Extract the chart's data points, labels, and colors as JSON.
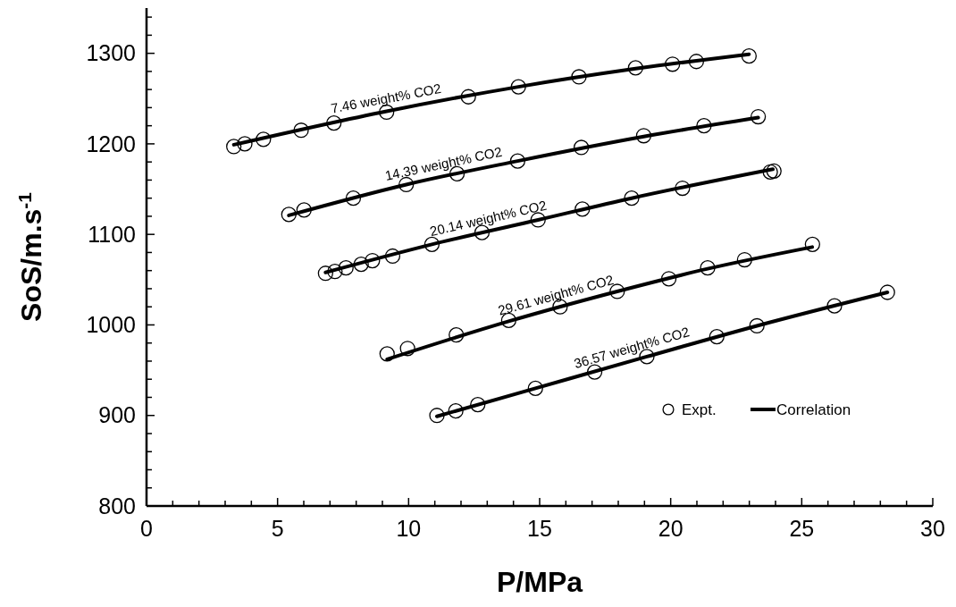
{
  "chart_data": {
    "type": "scatter",
    "xlabel": "P/MPa",
    "ylabel": "SoS/m.s$^{-1}$",
    "xlim": [
      0,
      30
    ],
    "ylim": [
      800,
      1350
    ],
    "xticks": [
      0,
      {
        "value": 1,
        "label": null
      },
      {
        "value": 2,
        "label": null
      },
      {
        "value": 3,
        "label": null
      },
      {
        "value": 4,
        "label": null
      },
      5,
      {
        "value": 6,
        "label": null
      },
      {
        "value": 7,
        "label": null
      },
      {
        "value": 8,
        "label": null
      },
      {
        "value": 9,
        "label": null
      },
      10,
      {
        "value": 11,
        "label": null
      },
      {
        "value": 12,
        "label": null
      },
      {
        "value": 13,
        "label": null
      },
      {
        "value": 14,
        "label": null
      },
      15,
      {
        "value": 16,
        "label": null
      },
      {
        "value": 17,
        "label": null
      },
      {
        "value": 18,
        "label": null
      },
      {
        "value": 19,
        "label": null
      },
      20,
      {
        "value": 21,
        "label": null
      },
      {
        "value": 22,
        "label": null
      },
      {
        "value": 23,
        "label": null
      },
      {
        "value": 24,
        "label": null
      },
      25,
      {
        "value": 26,
        "label": null
      },
      {
        "value": 27,
        "label": null
      },
      {
        "value": 28,
        "label": null
      },
      {
        "value": 29,
        "label": null
      },
      30
    ],
    "yticks": [
      800,
      {
        "value": 820,
        "label": null
      },
      {
        "value": 840,
        "label": null
      },
      {
        "value": 860,
        "label": null
      },
      {
        "value": 880,
        "label": null
      },
      900,
      {
        "value": 920,
        "label": null
      },
      {
        "value": 940,
        "label": null
      },
      {
        "value": 960,
        "label": null
      },
      {
        "value": 980,
        "label": null
      },
      1000,
      {
        "value": 1020,
        "label": null
      },
      {
        "value": 1040,
        "label": null
      },
      {
        "value": 1060,
        "label": null
      },
      {
        "value": 1080,
        "label": null
      },
      1100,
      {
        "value": 1120,
        "label": null
      },
      {
        "value": 1140,
        "label": null
      },
      {
        "value": 1160,
        "label": null
      },
      {
        "value": 1180,
        "label": null
      },
      1200,
      {
        "value": 1220,
        "label": null
      },
      {
        "value": 1240,
        "label": null
      },
      {
        "value": 1260,
        "label": null
      },
      {
        "value": 1280,
        "label": null
      },
      1300,
      {
        "value": 1320,
        "label": null
      },
      {
        "value": 1340,
        "label": null
      }
    ],
    "grid": false,
    "legend": "bottom right",
    "series": [
      {
        "name": "Expt.",
        "marker": "circle",
        "color": "#000000",
        "x": [
          3.33,
          3.75,
          4.46,
          5.9,
          7.15,
          9.16,
          12.28,
          14.19,
          16.5,
          18.66,
          20.07,
          20.98,
          22.99,
          5.43,
          6.01,
          7.89,
          9.91,
          11.85,
          14.16,
          16.59,
          18.97,
          21.27,
          23.34,
          6.83,
          7.19,
          7.61,
          8.19,
          8.62,
          9.39,
          10.89,
          12.8,
          14.94,
          16.63,
          18.51,
          20.45,
          23.8,
          23.94,
          9.18,
          9.96,
          11.82,
          13.82,
          15.78,
          17.96,
          19.93,
          21.41,
          22.82,
          25.41,
          11.08,
          11.8,
          12.64,
          14.84,
          17.1,
          19.09,
          21.76,
          23.29,
          26.25,
          28.27
        ],
        "values": [
          1197,
          1200,
          1205,
          1215,
          1223,
          1235,
          1252,
          1263,
          1274,
          1284,
          1288,
          1291,
          1297,
          1122,
          1127,
          1140,
          1155,
          1167,
          1181,
          1196,
          1209,
          1220,
          1230,
          1057,
          1059,
          1063,
          1067,
          1071,
          1076,
          1089,
          1102,
          1116,
          1128,
          1140,
          1151,
          1169,
          1170,
          968,
          974,
          989,
          1005,
          1020,
          1037,
          1051,
          1063,
          1072,
          1089,
          900,
          905,
          912,
          930,
          948,
          965,
          987,
          999,
          1021,
          1036
        ]
      },
      {
        "name": "Correlation",
        "type": "line",
        "marker": "none",
        "line_style": "solid",
        "color": "#000000",
        "x": [
          3.33,
          9.16,
          14.19,
          18.66,
          22.99,
          null,
          5.43,
          9.91,
          14.16,
          18.97,
          23.34,
          null,
          6.83,
          10.89,
          14.94,
          18.51,
          23.9,
          null,
          9.18,
          13.82,
          17.96,
          21.41,
          25.4,
          null,
          11.08,
          14.84,
          19.09,
          23.29,
          28.27
        ],
        "values": [
          1199,
          1236,
          1263,
          1283,
          1299,
          null,
          1121,
          1155,
          1181,
          1208,
          1229,
          null,
          1058,
          1089,
          1116,
          1140,
          1172,
          null,
          962,
          1004,
          1037,
          1062,
          1086,
          null,
          899,
          930,
          965,
          999,
          1036
        ]
      }
    ],
    "annotations": [
      "7.46 weight% CO2",
      "14.39 weight% CO2",
      "20.14 weight% CO2",
      "29.61 weight% CO2",
      "36.57 weight% CO2"
    ]
  }
}
